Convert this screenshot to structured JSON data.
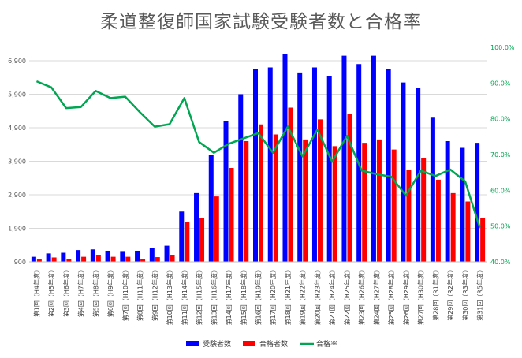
{
  "chart_data": {
    "type": "bar",
    "title": "柔道整復師国家試験受験者数と合格率",
    "categories": [
      "第1回（H4年度）",
      "第2回（H5年度）",
      "第3回（H6年度）",
      "第4回（H7年度）",
      "第5回（H8年度）",
      "第6回（H9年度）",
      "第7回（H10年度）",
      "第8回（H11年度）",
      "第9回（H12年度）",
      "第10回（H13年度）",
      "第11回（H14年度）",
      "第12回（H15年度）",
      "第13回（H16年度）",
      "第14回（H17年度）",
      "第15回（H18年度）",
      "第16回（H19年度）",
      "第17回（H20年度）",
      "第18回（H21年度）",
      "第19回（H22年度）",
      "第20回（H23年度）",
      "第21回（H24年度）",
      "第22回（H25年度）",
      "第23回（H26年度）",
      "第24回（H27年度）",
      "第25回（H28年度）",
      "第26回（H29年度）",
      "第27回（H30年度）",
      "第28回（R1年度）",
      "第29回（R2年度）",
      "第30回（R3年度）",
      "第31回（R5年度）"
    ],
    "y_left": {
      "ticks": [
        "900",
        "1,900",
        "2,900",
        "3,900",
        "4,900",
        "5,900",
        "6,900"
      ],
      "range": [
        900,
        7300
      ]
    },
    "y_right": {
      "ticks": [
        "40.0%",
        "50.0%",
        "60.0%",
        "70.0%",
        "80.0%",
        "90.0%",
        "100.0%"
      ],
      "range": [
        40,
        100
      ]
    },
    "series": [
      {
        "name": "受験者数",
        "kind": "bar",
        "color": "#0000ff",
        "values": [
          1050,
          1150,
          1170,
          1250,
          1270,
          1230,
          1220,
          1230,
          1310,
          1380,
          2400,
          2950,
          4100,
          5100,
          5900,
          6650,
          6700,
          7100,
          6550,
          6700,
          6450,
          7050,
          6800,
          7050,
          6650,
          6250,
          6100,
          5200,
          4500,
          4300,
          4450
        ]
      },
      {
        "name": "合格者数",
        "kind": "bar",
        "color": "#ff0000",
        "values": [
          970,
          1030,
          990,
          1050,
          1100,
          1050,
          1050,
          980,
          1040,
          1100,
          2100,
          2200,
          2850,
          3700,
          4500,
          5000,
          4700,
          5500,
          4550,
          5150,
          4350,
          5300,
          4450,
          4550,
          4250,
          3650,
          4000,
          3350,
          2950,
          2700,
          2200
        ]
      },
      {
        "name": "合格率",
        "kind": "line",
        "color": "#00a651",
        "axis": "right",
        "values": [
          90.5,
          88.8,
          83.0,
          83.3,
          87.8,
          85.8,
          86.2,
          81.8,
          77.8,
          78.5,
          85.8,
          73.5,
          70.5,
          73.0,
          74.5,
          76.0,
          70.5,
          77.8,
          69.5,
          77.0,
          68.0,
          75.2,
          65.5,
          64.5,
          63.8,
          58.5,
          65.5,
          64.0,
          65.8,
          62.5,
          49.5
        ]
      }
    ],
    "grid": "horizontal",
    "legend": "bottom"
  }
}
